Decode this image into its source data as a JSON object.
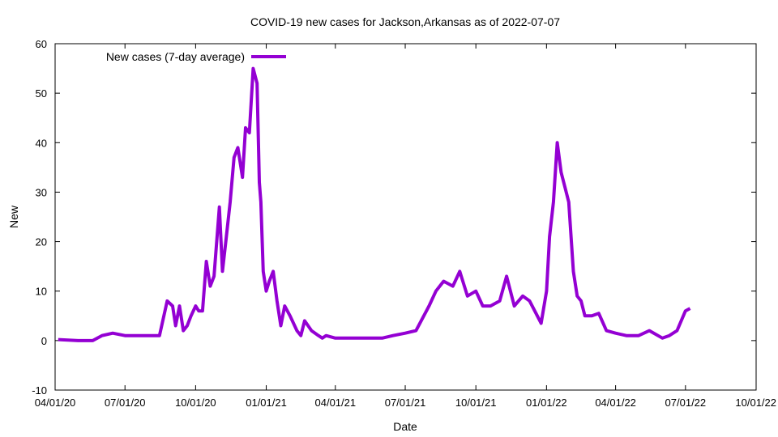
{
  "chart_data": {
    "type": "line",
    "title": "COVID-19 new cases for Jackson,Arkansas as of 2022-07-07",
    "xlabel": "Date",
    "ylabel": "New",
    "xlim": [
      "2020-04-01",
      "2022-10-01"
    ],
    "ylim": [
      -10,
      60
    ],
    "x_ticks": [
      "2020-04-01",
      "2020-07-01",
      "2020-10-01",
      "2021-01-01",
      "2021-04-01",
      "2021-07-01",
      "2021-10-01",
      "2022-01-01",
      "2022-04-01",
      "2022-07-01",
      "2022-10-01"
    ],
    "x_tick_labels": [
      "04/01/20",
      "07/01/20",
      "10/01/20",
      "01/01/21",
      "04/01/21",
      "07/01/21",
      "10/01/21",
      "01/01/22",
      "04/01/22",
      "07/01/22",
      "10/01/22"
    ],
    "y_ticks": [
      -10,
      0,
      10,
      20,
      30,
      40,
      50,
      60
    ],
    "y_tick_labels": [
      "-10",
      "0",
      "10",
      "20",
      "30",
      "40",
      "50",
      "60"
    ],
    "legend_position": "top-left",
    "grid": false,
    "series": [
      {
        "name": "New cases (7-day average)",
        "color": "#9400d3",
        "x": [
          "2020-04-05",
          "2020-05-01",
          "2020-05-20",
          "2020-06-01",
          "2020-06-15",
          "2020-07-01",
          "2020-07-15",
          "2020-08-01",
          "2020-08-15",
          "2020-08-25",
          "2020-09-01",
          "2020-09-05",
          "2020-09-10",
          "2020-09-15",
          "2020-09-20",
          "2020-09-25",
          "2020-10-01",
          "2020-10-05",
          "2020-10-10",
          "2020-10-15",
          "2020-10-20",
          "2020-10-25",
          "2020-11-01",
          "2020-11-05",
          "2020-11-10",
          "2020-11-15",
          "2020-11-20",
          "2020-11-25",
          "2020-12-01",
          "2020-12-05",
          "2020-12-10",
          "2020-12-15",
          "2020-12-20",
          "2020-12-23",
          "2020-12-25",
          "2020-12-28",
          "2021-01-01",
          "2021-01-05",
          "2021-01-10",
          "2021-01-15",
          "2021-01-20",
          "2021-01-25",
          "2021-02-01",
          "2021-02-10",
          "2021-02-15",
          "2021-02-20",
          "2021-03-01",
          "2021-03-10",
          "2021-03-15",
          "2021-03-20",
          "2021-04-01",
          "2021-04-15",
          "2021-05-01",
          "2021-05-15",
          "2021-06-01",
          "2021-06-15",
          "2021-07-01",
          "2021-07-15",
          "2021-08-01",
          "2021-08-10",
          "2021-08-20",
          "2021-09-01",
          "2021-09-10",
          "2021-09-20",
          "2021-10-01",
          "2021-10-10",
          "2021-10-20",
          "2021-11-01",
          "2021-11-10",
          "2021-11-20",
          "2021-12-01",
          "2021-12-10",
          "2021-12-20",
          "2021-12-25",
          "2022-01-01",
          "2022-01-05",
          "2022-01-10",
          "2022-01-15",
          "2022-01-20",
          "2022-01-25",
          "2022-01-30",
          "2022-02-05",
          "2022-02-10",
          "2022-02-15",
          "2022-02-20",
          "2022-03-01",
          "2022-03-10",
          "2022-03-20",
          "2022-04-01",
          "2022-04-15",
          "2022-05-01",
          "2022-05-15",
          "2022-06-01",
          "2022-06-10",
          "2022-06-20",
          "2022-07-01",
          "2022-07-07"
        ],
        "y": [
          0.2,
          0,
          0,
          1,
          1.5,
          1,
          1,
          1,
          1,
          8,
          7,
          3,
          7,
          2,
          3,
          5,
          7,
          6,
          6,
          16,
          11,
          13,
          27,
          14,
          21,
          28,
          37,
          39,
          33,
          43,
          42,
          55,
          52,
          32,
          28,
          14,
          10,
          12,
          14,
          8,
          3,
          7,
          5,
          2,
          1,
          4,
          2,
          1,
          0.5,
          1,
          0.5,
          0.5,
          0.5,
          0.5,
          0.5,
          1,
          1.5,
          2,
          7,
          10,
          12,
          11,
          14,
          9,
          10,
          7,
          7,
          8,
          13,
          7,
          9,
          8,
          5,
          3.5,
          10,
          21,
          28,
          40,
          34,
          31,
          28,
          14,
          9,
          8,
          5,
          5,
          5.5,
          2,
          1.5,
          1,
          1,
          2,
          0.5,
          1,
          2,
          6,
          6.5
        ]
      }
    ]
  }
}
